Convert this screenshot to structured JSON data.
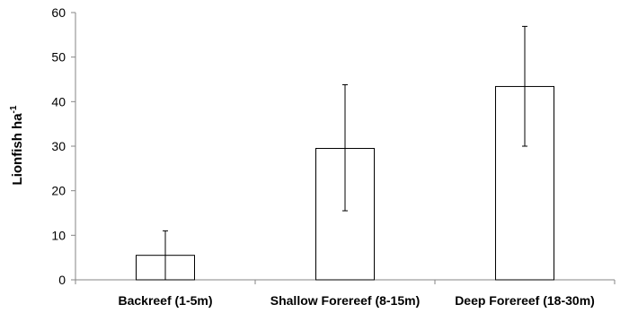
{
  "chart_data": {
    "type": "bar",
    "categories": [
      "Backreef (1-5m)",
      "Shallow Forereef (8-15m)",
      "Deep Forereef (18-30m)"
    ],
    "values": [
      5.5,
      29.5,
      43.4
    ],
    "error_low": [
      0,
      15.5,
      30
    ],
    "error_high": [
      11,
      43.8,
      56.9
    ],
    "title": "",
    "xlabel": "",
    "ylabel": {
      "base": "Lionfish ha",
      "superscript": "-1"
    },
    "ylim": [
      0,
      60
    ],
    "yticks": [
      0,
      10,
      20,
      30,
      40,
      50,
      60
    ],
    "grid": false,
    "legend": "none",
    "colors": {
      "bar_fill": "#ffffff",
      "bar_stroke": "#000000",
      "axis": "#868686",
      "error_bar": "#000000"
    }
  }
}
